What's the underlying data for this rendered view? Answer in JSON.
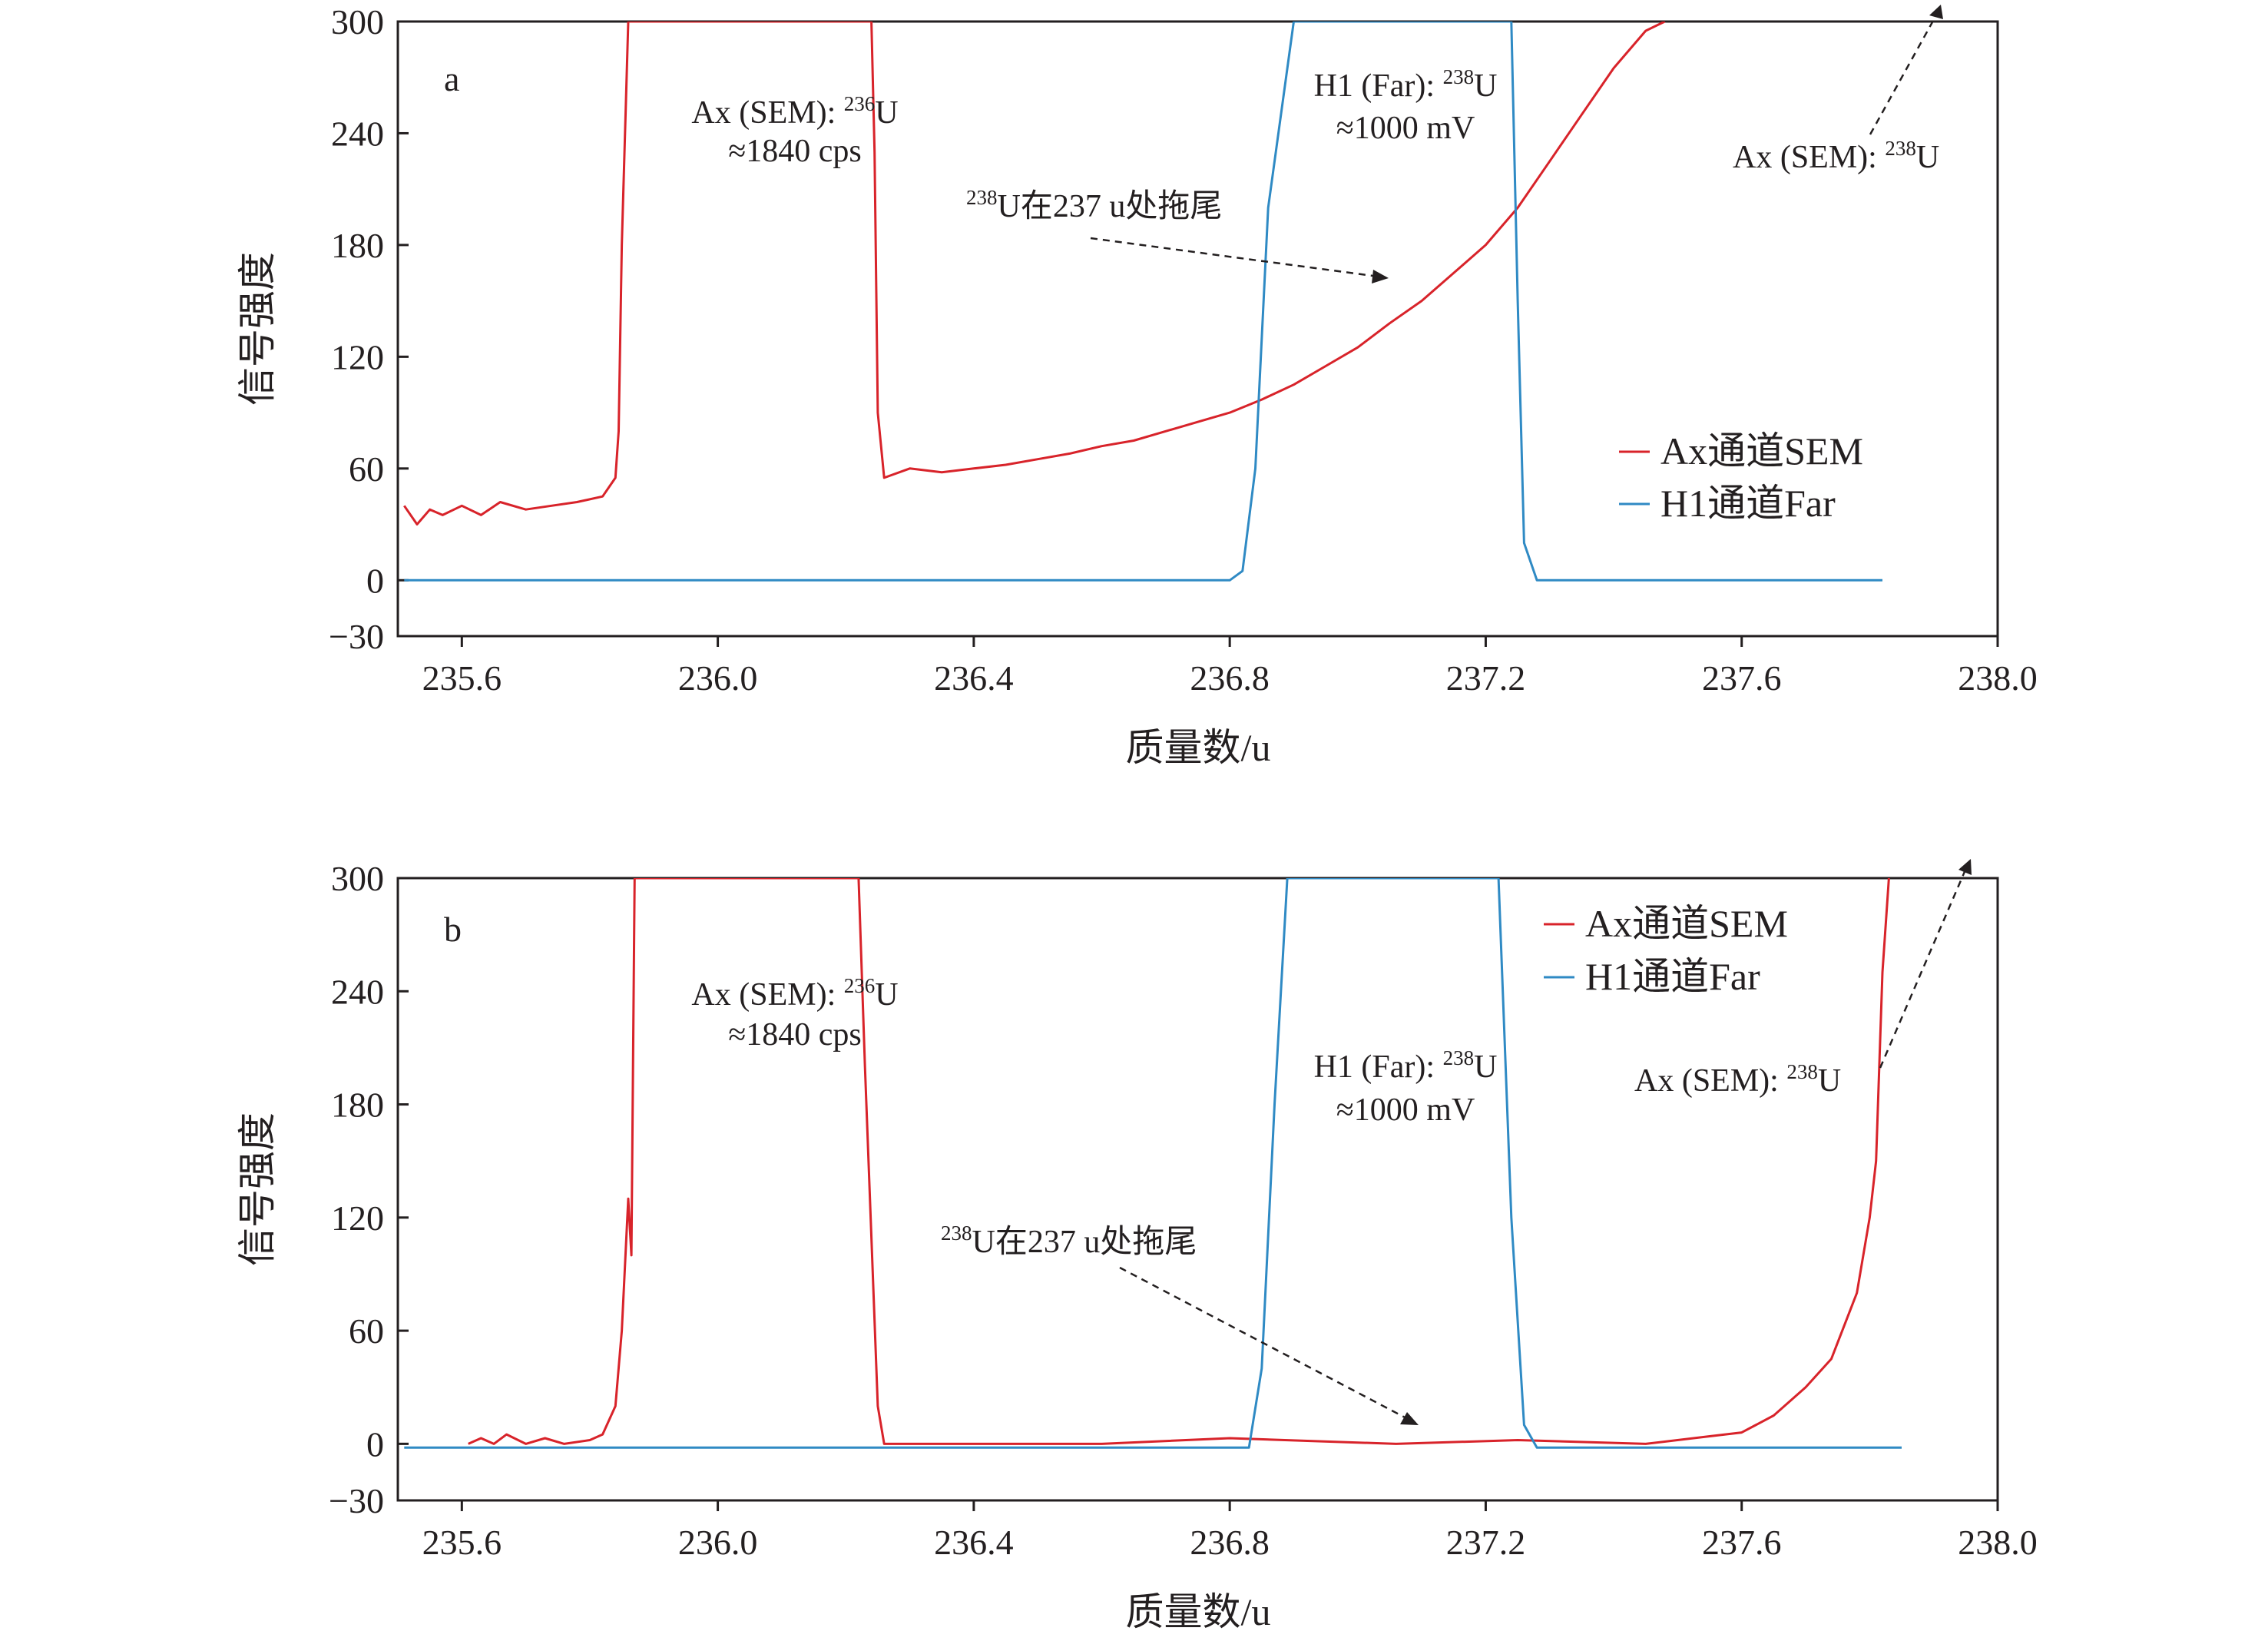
{
  "chart_data": [
    {
      "type": "line",
      "panel_label": "a",
      "xlabel": "质量数/u",
      "ylabel": "信号强度",
      "xlim": [
        235.5,
        238.0
      ],
      "ylim": [
        -30,
        300
      ],
      "xticks": [
        235.6,
        236.0,
        236.4,
        236.8,
        237.2,
        237.6,
        238.0
      ],
      "xtick_labels": [
        "235.6",
        "236.0",
        "236.4",
        "236.8",
        "237.2",
        "237.6",
        "238.0"
      ],
      "yticks": [
        -30,
        0,
        60,
        120,
        180,
        240,
        300
      ],
      "ytick_labels": [
        "−30",
        "0",
        "60",
        "120",
        "180",
        "240",
        "300"
      ],
      "legend_position": "center-right",
      "series": [
        {
          "name": "Ax通道SEM",
          "color": "#d8232a",
          "x": [
            235.51,
            235.53,
            235.55,
            235.57,
            235.6,
            235.63,
            235.66,
            235.7,
            235.74,
            235.78,
            235.82,
            235.84,
            235.845,
            235.85,
            235.86,
            235.87,
            236.24,
            236.245,
            236.25,
            236.26,
            236.3,
            236.35,
            236.4,
            236.45,
            236.5,
            236.55,
            236.6,
            236.65,
            236.7,
            236.75,
            236.8,
            236.85,
            236.9,
            236.95,
            237.0,
            237.05,
            237.1,
            237.15,
            237.2,
            237.25,
            237.3,
            237.35,
            237.4,
            237.45,
            237.48
          ],
          "y": [
            40,
            30,
            38,
            35,
            40,
            35,
            42,
            38,
            40,
            42,
            45,
            55,
            80,
            180,
            300,
            300,
            300,
            230,
            90,
            55,
            60,
            58,
            60,
            62,
            65,
            68,
            72,
            75,
            80,
            85,
            90,
            97,
            105,
            115,
            125,
            138,
            150,
            165,
            180,
            200,
            225,
            250,
            275,
            295,
            300
          ]
        },
        {
          "name": "H1通道Far",
          "color": "#2f8ac4",
          "x": [
            235.51,
            236.0,
            236.5,
            236.8,
            236.82,
            236.84,
            236.86,
            236.9,
            237.24,
            237.25,
            237.26,
            237.28,
            237.5,
            237.82
          ],
          "y": [
            0,
            0,
            0,
            0,
            5,
            60,
            200,
            300,
            300,
            150,
            20,
            0,
            0,
            0
          ]
        }
      ],
      "annotations": [
        {
          "pre": "Ax (SEM): ",
          "sup": "236",
          "post": "U",
          "line2": "≈1840 cps"
        },
        {
          "pre": "H1 (Far): ",
          "sup": "238",
          "post": "U",
          "line2": "≈1000 mV"
        },
        {
          "pre": "",
          "sup": "238",
          "post": "U在237 u处拖尾",
          "line2": ""
        },
        {
          "pre": "Ax (SEM): ",
          "sup": "238",
          "post": "U",
          "line2": ""
        }
      ]
    },
    {
      "type": "line",
      "panel_label": "b",
      "xlabel": "质量数/u",
      "ylabel": "信号强度",
      "xlim": [
        235.5,
        238.0
      ],
      "ylim": [
        -30,
        300
      ],
      "xticks": [
        235.6,
        236.0,
        236.4,
        236.8,
        237.2,
        237.6,
        238.0
      ],
      "xtick_labels": [
        "235.6",
        "236.0",
        "236.4",
        "236.8",
        "237.2",
        "237.6",
        "238.0"
      ],
      "yticks": [
        -30,
        0,
        60,
        120,
        180,
        240,
        300
      ],
      "ytick_labels": [
        "−30",
        "0",
        "60",
        "120",
        "180",
        "240",
        "300"
      ],
      "legend_position": "top-right",
      "series": [
        {
          "name": "Ax通道SEM",
          "color": "#d8232a",
          "x": [
            235.61,
            235.63,
            235.65,
            235.67,
            235.7,
            235.73,
            235.76,
            235.8,
            235.82,
            235.84,
            235.85,
            235.86,
            235.865,
            235.87,
            235.88,
            236.22,
            236.23,
            236.25,
            236.26,
            236.6,
            236.8,
            237.06,
            237.25,
            237.45,
            237.55,
            237.6,
            237.65,
            237.7,
            237.74,
            237.78,
            237.8,
            237.81,
            237.82,
            237.83
          ],
          "y": [
            0,
            3,
            0,
            5,
            0,
            3,
            0,
            2,
            5,
            20,
            60,
            130,
            100,
            300,
            300,
            300,
            200,
            20,
            0,
            0,
            3,
            0,
            2,
            0,
            4,
            6,
            15,
            30,
            45,
            80,
            120,
            150,
            250,
            300
          ]
        },
        {
          "name": "H1通道Far",
          "color": "#2f8ac4",
          "x": [
            235.51,
            236.0,
            236.5,
            236.83,
            236.85,
            236.87,
            236.89,
            237.22,
            237.24,
            237.26,
            237.28,
            237.5,
            237.85
          ],
          "y": [
            -2,
            -2,
            -2,
            -2,
            40,
            180,
            300,
            300,
            120,
            10,
            -2,
            -2,
            -2
          ]
        }
      ],
      "annotations": [
        {
          "pre": "Ax (SEM): ",
          "sup": "236",
          "post": "U",
          "line2": "≈1840 cps"
        },
        {
          "pre": "H1 (Far): ",
          "sup": "238",
          "post": "U",
          "line2": "≈1000 mV"
        },
        {
          "pre": "",
          "sup": "238",
          "post": "U在237 u处拖尾",
          "line2": ""
        },
        {
          "pre": "Ax (SEM): ",
          "sup": "238",
          "post": "U",
          "line2": ""
        }
      ]
    }
  ]
}
